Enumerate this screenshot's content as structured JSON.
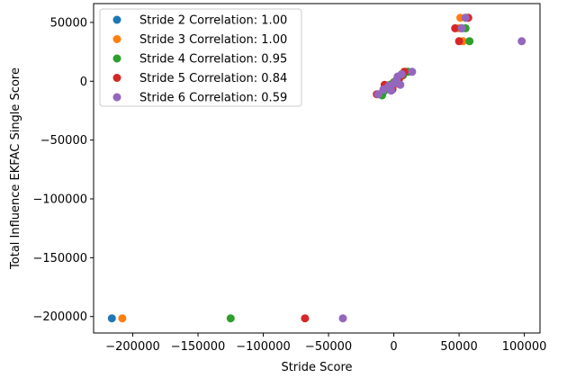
{
  "chart_data": {
    "type": "scatter",
    "title": "",
    "xlabel": "Stride Score",
    "ylabel": "Total Influence EKFAC Single Score",
    "xlim": [
      -230000,
      112000
    ],
    "ylim": [
      -214000,
      66000
    ],
    "xticks": [
      -200000,
      -150000,
      -100000,
      -50000,
      0,
      50000,
      100000
    ],
    "yticks": [
      50000,
      0,
      -50000,
      -100000,
      -150000,
      -200000
    ],
    "xtick_labels": [
      "−200000",
      "−150000",
      "−100000",
      "−50000",
      "0",
      "50000",
      "100000"
    ],
    "ytick_labels": [
      "50000",
      "0",
      "−50000",
      "−100000",
      "−150000",
      "−200000"
    ],
    "grid": false,
    "legend_position": "upper-left",
    "series": [
      {
        "name": "Stride 2 Correlation: 1.00",
        "color": "#1f77b4",
        "points": [
          [
            -216000,
            -201500
          ],
          [
            -8000,
            -9000
          ],
          [
            -4000,
            -6000
          ],
          [
            -2000,
            -4000
          ],
          [
            0,
            -1000
          ],
          [
            2000,
            1000
          ],
          [
            4000,
            3000
          ],
          [
            6000,
            5000
          ],
          [
            9000,
            8000
          ],
          [
            52000,
            45000
          ],
          [
            55000,
            54000
          ]
        ]
      },
      {
        "name": "Stride 3 Correlation: 1.00",
        "color": "#ff7f0e",
        "points": [
          [
            -208000,
            -201500
          ],
          [
            -9000,
            -10000
          ],
          [
            -5000,
            -6000
          ],
          [
            -1000,
            -2000
          ],
          [
            1000,
            0
          ],
          [
            3000,
            2000
          ],
          [
            5000,
            4000
          ],
          [
            7000,
            6000
          ],
          [
            10000,
            8000
          ],
          [
            50000,
            45000
          ],
          [
            53000,
            34000
          ],
          [
            51000,
            54000
          ],
          [
            57000,
            54000
          ]
        ]
      },
      {
        "name": "Stride 4 Correlation: 0.95",
        "color": "#2ca02c",
        "points": [
          [
            -125000,
            -201500
          ],
          [
            -9000,
            -12000
          ],
          [
            -6000,
            -7000
          ],
          [
            -3000,
            -3000
          ],
          [
            0,
            -1000
          ],
          [
            2000,
            1000
          ],
          [
            4000,
            3000
          ],
          [
            7000,
            5000
          ],
          [
            11000,
            8000
          ],
          [
            55000,
            45000
          ],
          [
            58000,
            34000
          ],
          [
            56000,
            54000
          ]
        ]
      },
      {
        "name": "Stride 5 Correlation: 0.84",
        "color": "#d62728",
        "points": [
          [
            -68000,
            -201500
          ],
          [
            -13000,
            -11000
          ],
          [
            -7000,
            -3000
          ],
          [
            -1000,
            -7000
          ],
          [
            2000,
            -2000
          ],
          [
            4000,
            2000
          ],
          [
            6000,
            5000
          ],
          [
            8000,
            8000
          ],
          [
            47000,
            45000
          ],
          [
            50000,
            34000
          ],
          [
            57000,
            54000
          ]
        ]
      },
      {
        "name": "Stride 6 Correlation: 0.59",
        "color": "#9467bd",
        "points": [
          [
            -39000,
            -201500
          ],
          [
            -12000,
            -11000
          ],
          [
            -8000,
            -7000
          ],
          [
            -4000,
            -4000
          ],
          [
            -2000,
            -8000
          ],
          [
            0,
            -2000
          ],
          [
            2000,
            1000
          ],
          [
            3000,
            4000
          ],
          [
            5000,
            -3000
          ],
          [
            6000,
            6000
          ],
          [
            14000,
            8000
          ],
          [
            52000,
            45000
          ],
          [
            55000,
            54000
          ],
          [
            98000,
            34000
          ]
        ]
      }
    ]
  }
}
